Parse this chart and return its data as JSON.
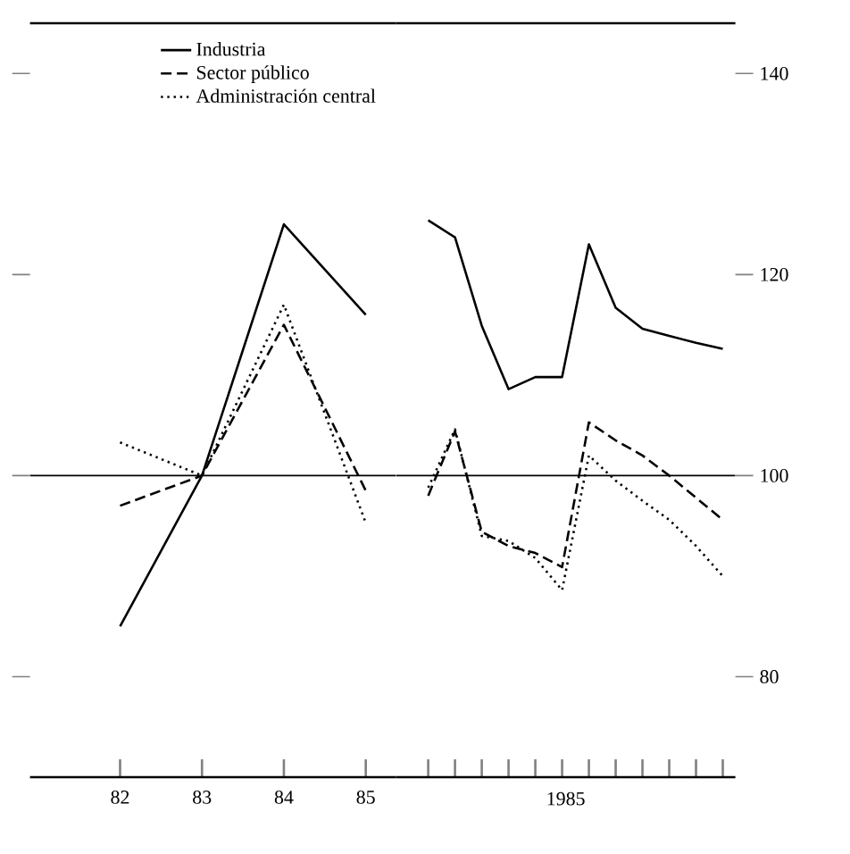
{
  "chart_data": [
    {
      "type": "line",
      "categories": [
        "82",
        "83",
        "84",
        "85"
      ],
      "ylim": [
        70,
        145
      ],
      "yticks": [
        {
          "value": 80,
          "label": null
        },
        {
          "value": 100,
          "label": null
        },
        {
          "value": 120,
          "label": null
        },
        {
          "value": 140,
          "label": null
        }
      ],
      "tick_labels": "x",
      "legend": "top right",
      "marker": "none",
      "grid": false,
      "ref_lines": [
        {
          "axis": "y",
          "value": 100
        }
      ],
      "series": [
        {
          "name": "Industria",
          "color": "#000000",
          "line_style": "solid",
          "values": [
            85,
            100,
            125,
            116
          ]
        },
        {
          "name": "Sector público",
          "color": "#000000",
          "line_style": "dashed",
          "values": [
            97,
            100,
            115,
            98.5
          ]
        },
        {
          "name": "Administración central",
          "color": "#000000",
          "line_style": "dotted",
          "values": [
            103.3,
            100,
            117,
            95.3
          ]
        }
      ]
    },
    {
      "type": "line",
      "categories": [
        null,
        null,
        null,
        null,
        null,
        null,
        null,
        null,
        null,
        null,
        null,
        null
      ],
      "xlabel": "1985",
      "ylim": [
        70,
        145
      ],
      "yticks": [
        80,
        100,
        120,
        140
      ],
      "marker": "none",
      "grid": false,
      "ref_lines": [
        {
          "axis": "y",
          "value": 100
        }
      ],
      "series": [
        {
          "color": "#000000",
          "line_style": "solid",
          "values": [
            125.4,
            123.7,
            114.9,
            108.6,
            109.8,
            109.8,
            123,
            116.7,
            114.6,
            113.9,
            113.2,
            112.6
          ]
        },
        {
          "color": "#000000",
          "line_style": "dashed",
          "values": [
            98,
            104.4,
            94.4,
            93,
            92.3,
            90.9,
            105.3,
            103.5,
            102,
            100,
            97.8,
            95.6
          ]
        },
        {
          "color": "#000000",
          "line_style": "dotted",
          "values": [
            98.8,
            104.6,
            94,
            93.5,
            91.8,
            88.6,
            102,
            99.5,
            97.5,
            95.6,
            93,
            90
          ]
        }
      ]
    }
  ]
}
